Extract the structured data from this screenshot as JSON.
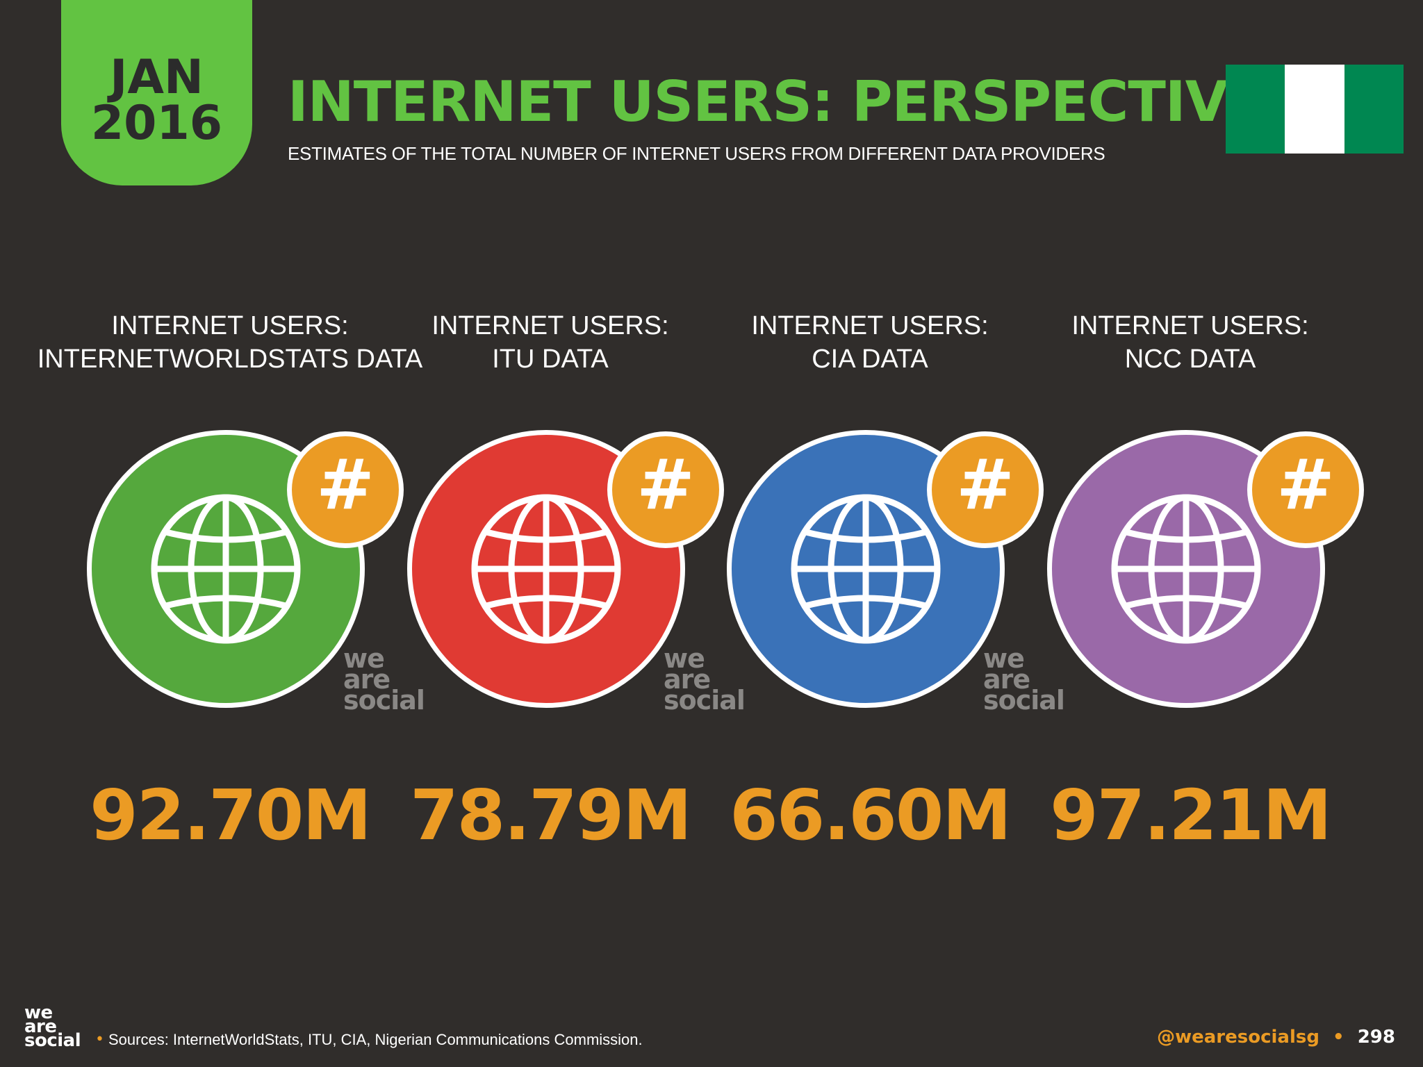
{
  "badge": {
    "month": "JAN",
    "year": "2016"
  },
  "title": "INTERNET USERS: PERSPECTIVE",
  "subtitle": "ESTIMATES OF THE TOTAL NUMBER OF INTERNET USERS FROM DIFFERENT DATA PROVIDERS",
  "flag": {
    "colors": [
      "#008751",
      "#ffffff",
      "#008751"
    ]
  },
  "columns": [
    {
      "label_line1": "INTERNET USERS:",
      "label_line2": "INTERNETWORLDSTATS DATA",
      "value": "92.70M",
      "color": "#55a83d"
    },
    {
      "label_line1": "INTERNET USERS:",
      "label_line2": "ITU DATA",
      "value": "78.79M",
      "color": "#e03a33"
    },
    {
      "label_line1": "INTERNET USERS:",
      "label_line2": "CIA DATA",
      "value": "66.60M",
      "color": "#3a72b8"
    },
    {
      "label_line1": "INTERNET USERS:",
      "label_line2": "NCC DATA",
      "value": "97.21M",
      "color": "#9a69a8"
    }
  ],
  "hash_symbol": "#",
  "watermark": {
    "line1": "we",
    "line2": "are",
    "line3": "social"
  },
  "footer": {
    "logo_line1": "we",
    "logo_line2": "are",
    "logo_line3": "social",
    "bullet": "•",
    "sources": "Sources: InternetWorldStats, ITU, CIA, Nigerian Communications Commission.",
    "handle": "@wearesocialsg",
    "separator": "•",
    "page": "298"
  },
  "accent_color": "#eb9b24",
  "brand_green": "#62c342",
  "icons": [
    "globe-icon",
    "hash-icon"
  ]
}
